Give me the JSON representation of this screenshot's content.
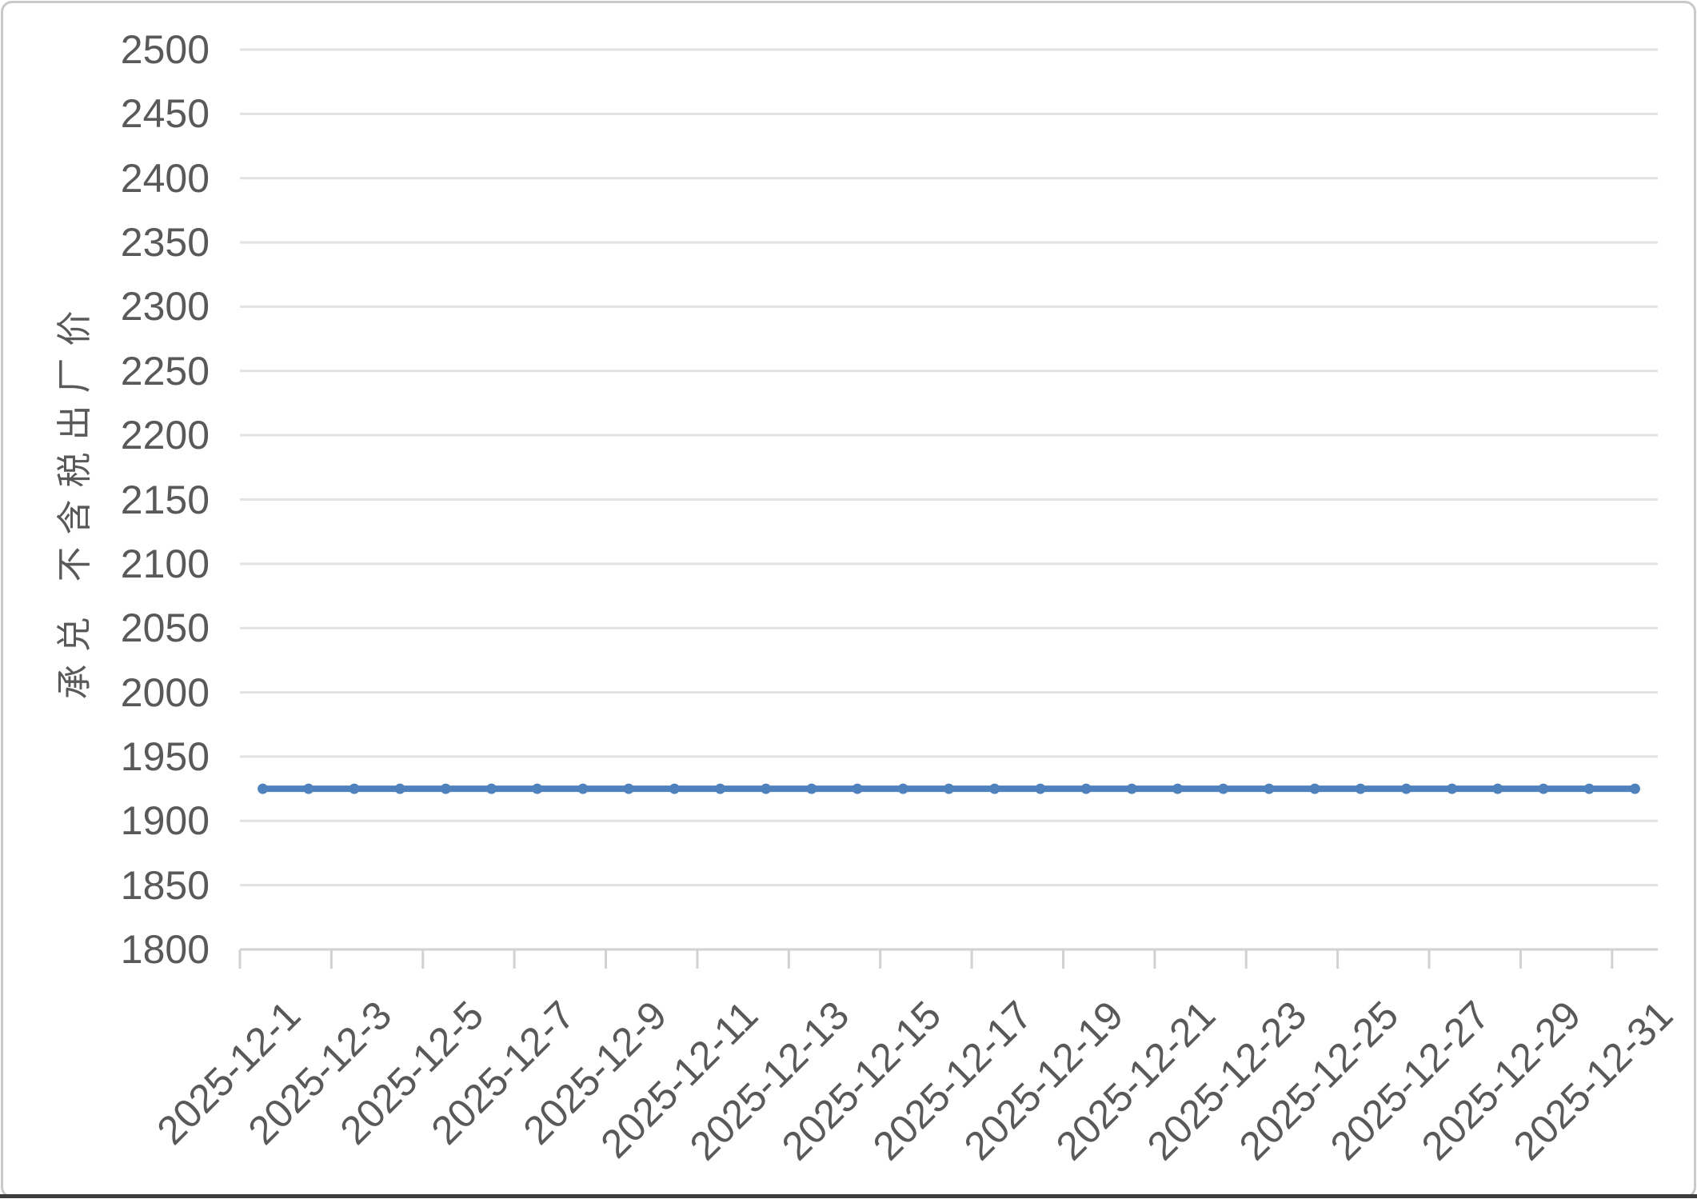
{
  "chart_data": {
    "type": "line",
    "title": "",
    "xlabel": "",
    "ylabel": "承兑 不含税出厂价",
    "x": [
      "2025-12-1",
      "2025-12-2",
      "2025-12-3",
      "2025-12-4",
      "2025-12-5",
      "2025-12-6",
      "2025-12-7",
      "2025-12-8",
      "2025-12-9",
      "2025-12-10",
      "2025-12-11",
      "2025-12-12",
      "2025-12-13",
      "2025-12-14",
      "2025-12-15",
      "2025-12-16",
      "2025-12-17",
      "2025-12-18",
      "2025-12-19",
      "2025-12-20",
      "2025-12-21",
      "2025-12-22",
      "2025-12-23",
      "2025-12-24",
      "2025-12-25",
      "2025-12-26",
      "2025-12-27",
      "2025-12-28",
      "2025-12-29",
      "2025-12-30",
      "2025-12-31"
    ],
    "values": [
      1925,
      1925,
      1925,
      1925,
      1925,
      1925,
      1925,
      1925,
      1925,
      1925,
      1925,
      1925,
      1925,
      1925,
      1925,
      1925,
      1925,
      1925,
      1925,
      1925,
      1925,
      1925,
      1925,
      1925,
      1925,
      1925,
      1925,
      1925,
      1925,
      1925,
      1925
    ],
    "xtick_labels": [
      "2025-12-1",
      "2025-12-3",
      "2025-12-5",
      "2025-12-7",
      "2025-12-9",
      "2025-12-11",
      "2025-12-13",
      "2025-12-15",
      "2025-12-17",
      "2025-12-19",
      "2025-12-21",
      "2025-12-23",
      "2025-12-25",
      "2025-12-27",
      "2025-12-29",
      "2025-12-31"
    ],
    "xtick_interval": 2,
    "yticks": [
      1800,
      1850,
      1900,
      1950,
      2000,
      2050,
      2100,
      2150,
      2200,
      2250,
      2300,
      2350,
      2400,
      2450,
      2500
    ],
    "ylim": [
      1800,
      2500
    ],
    "grid": true,
    "legend": "none",
    "marker": "circle",
    "colors": {
      "line": "#4F81BD",
      "gridline": "#E2E2E2",
      "axis": "#D2D2D2",
      "tick_text": "#595959",
      "frame_border": "#C9C9C9",
      "bottom_edge": "#3C3C3C"
    }
  }
}
